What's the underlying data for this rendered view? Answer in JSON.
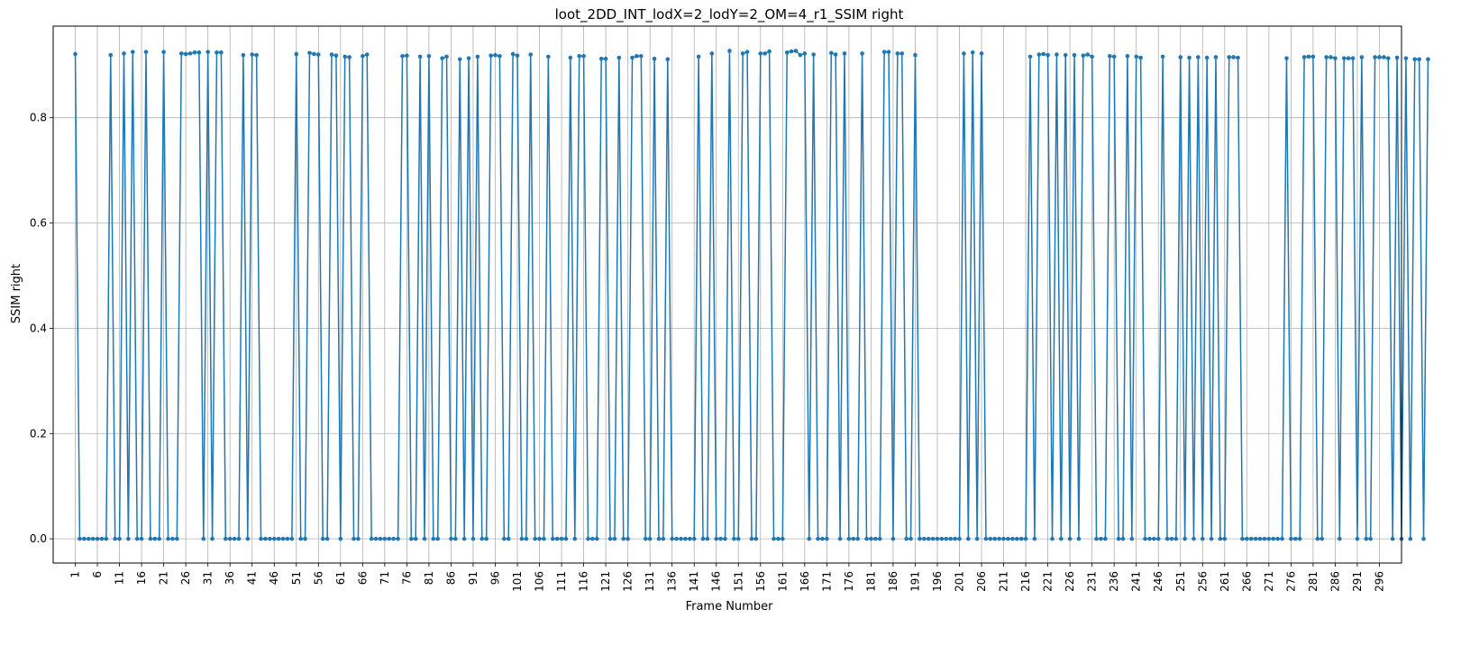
{
  "chart_data": {
    "type": "line",
    "title": "loot_2DD_INT_lodX=2_lodY=2_OM=4_r1_SSIM right",
    "xlabel": "Frame Number",
    "ylabel": "SSIM right",
    "xlim": [
      -4,
      301
    ],
    "ylim": [
      -0.046,
      0.974
    ],
    "grid": true,
    "color": "#1f77b4",
    "x_ticks": [
      1,
      6,
      11,
      16,
      21,
      26,
      31,
      36,
      41,
      46,
      51,
      56,
      61,
      66,
      71,
      76,
      81,
      86,
      91,
      96,
      101,
      106,
      111,
      116,
      121,
      126,
      131,
      136,
      141,
      146,
      151,
      156,
      161,
      166,
      171,
      176,
      181,
      186,
      191,
      196,
      201,
      206,
      211,
      216,
      221,
      226,
      231,
      236,
      241,
      246,
      251,
      256,
      261,
      266,
      271,
      276,
      281,
      286,
      291,
      296
    ],
    "y_ticks": [
      0.0,
      0.2,
      0.4,
      0.6,
      0.8
    ],
    "y_tick_labels": [
      "0.0",
      "0.2",
      "0.4",
      "0.6",
      "0.8"
    ],
    "series": [
      {
        "x_start": 1,
        "values": [
          0.921,
          0,
          0,
          0,
          0,
          0,
          0,
          0,
          0.919,
          0,
          0,
          0.922,
          0,
          0.925,
          0,
          0,
          0.925,
          0,
          0,
          0,
          0.925,
          0,
          0,
          0,
          0.922,
          0.921,
          0.922,
          0.924,
          0.924,
          0,
          0.925,
          0,
          0.924,
          0.924,
          0,
          0,
          0,
          0,
          0.919,
          0,
          0.92,
          0.919,
          0,
          0,
          0,
          0,
          0,
          0,
          0,
          0,
          0.921,
          0,
          0,
          0.923,
          0.921,
          0.92,
          0,
          0,
          0.92,
          0.918,
          0,
          0.916,
          0.915,
          0,
          0,
          0.917,
          0.92,
          0,
          0,
          0,
          0,
          0,
          0,
          0,
          0.917,
          0.918,
          0,
          0,
          0.916,
          0,
          0.917,
          0,
          0,
          0.913,
          0.916,
          0,
          0,
          0.911,
          0,
          0.913,
          0,
          0.916,
          0,
          0,
          0.918,
          0.919,
          0.917,
          0,
          0,
          0.921,
          0.918,
          0,
          0,
          0.92,
          0,
          0,
          0,
          0.916,
          0,
          0,
          0,
          0,
          0.914,
          0,
          0.917,
          0.917,
          0,
          0,
          0,
          0.912,
          0.912,
          0,
          0,
          0.914,
          0,
          0,
          0.914,
          0.917,
          0.917,
          0,
          0,
          0.912,
          0,
          0,
          0.911,
          0,
          0,
          0,
          0,
          0,
          0,
          0.916,
          0,
          0,
          0.922,
          0,
          0,
          0,
          0.927,
          0,
          0,
          0.922,
          0.925,
          0,
          0,
          0.922,
          0.922,
          0.926,
          0,
          0,
          0,
          0.924,
          0.926,
          0.927,
          0.919,
          0.922,
          0,
          0.92,
          0,
          0,
          0,
          0.923,
          0.92,
          0,
          0.922,
          0,
          0,
          0,
          0.922,
          0,
          0,
          0,
          0,
          0.925,
          0.925,
          0,
          0.922,
          0.922,
          0,
          0,
          0.919,
          0,
          0,
          0,
          0,
          0,
          0,
          0,
          0,
          0,
          0,
          0.922,
          0,
          0.924,
          0,
          0.922,
          0,
          0,
          0,
          0,
          0,
          0,
          0,
          0,
          0,
          0,
          0.916,
          0,
          0.92,
          0.921,
          0.919,
          0,
          0.92,
          0,
          0.919,
          0,
          0.919,
          0,
          0.918,
          0.92,
          0.916,
          0,
          0,
          0,
          0.917,
          0.916,
          0,
          0,
          0.917,
          0,
          0.916,
          0.914,
          0,
          0,
          0,
          0,
          0.916,
          0,
          0,
          0,
          0.915,
          0,
          0.914,
          0,
          0.915,
          0,
          0.914,
          0,
          0.915,
          0,
          0,
          0.915,
          0.915,
          0.914,
          0,
          0,
          0,
          0,
          0,
          0,
          0,
          0,
          0,
          0,
          0.913,
          0,
          0,
          0,
          0.915,
          0.916,
          0.916,
          0,
          0,
          0.915,
          0.915,
          0.913,
          0,
          0.913,
          0.913,
          0.913,
          0,
          0.915,
          0,
          0,
          0.915,
          0.915,
          0.915,
          0.913,
          0,
          0.914,
          0,
          0.913,
          0,
          0.911,
          0.911,
          0,
          0.911
        ]
      }
    ]
  }
}
